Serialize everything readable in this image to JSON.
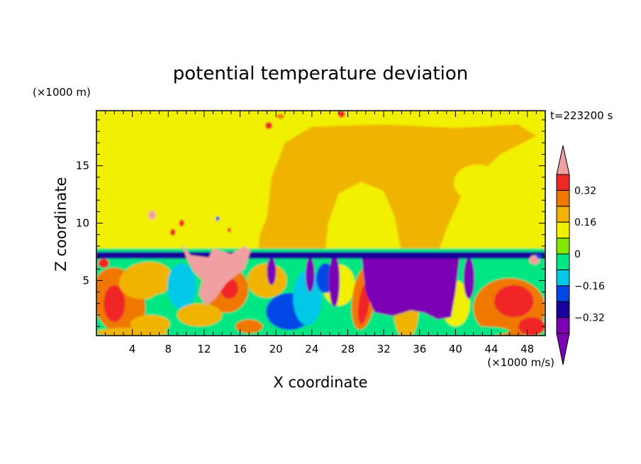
{
  "chart_data": {
    "type": "heatmap",
    "title": "potential temperature deviation",
    "xlabel": "X coordinate",
    "ylabel": "Z coordinate",
    "x_unit": "(×1000 m/s)",
    "y_unit": "(×1000 m)",
    "time_label": "t=223200 s",
    "xlim": [
      0,
      50
    ],
    "ylim": [
      0.2,
      19.8
    ],
    "x_ticks": [
      4,
      8,
      12,
      16,
      20,
      24,
      28,
      32,
      36,
      40,
      44,
      48
    ],
    "y_ticks": [
      5,
      10,
      15
    ],
    "colorbar": {
      "levels": [
        -0.4,
        -0.32,
        -0.24,
        -0.16,
        -0.08,
        0,
        0.08,
        0.16,
        0.24,
        0.32,
        0.4
      ],
      "labels": [
        "0.32",
        "0.16",
        "0",
        "−0.16",
        "−0.32"
      ],
      "label_values": [
        0.32,
        0.16,
        0,
        -0.16,
        -0.32
      ],
      "colors": [
        "#7b00b4",
        "#18009a",
        "#0046e6",
        "#00c8e6",
        "#00e682",
        "#82e600",
        "#f0f000",
        "#f0b400",
        "#f07800",
        "#f02828",
        "#f0a0a0"
      ]
    },
    "regions": [
      {
        "level": 0.04,
        "note": "upper layer",
        "x": [
          0,
          50
        ],
        "z": [
          7.3,
          19.8
        ]
      },
      {
        "level": 0.1,
        "note": "plume",
        "x": [
          18,
          50
        ],
        "z": [
          7.3,
          18.5
        ]
      },
      {
        "level": 0.04,
        "note": "plume interior",
        "x": [
          25,
          36
        ],
        "z": [
          7.3,
          13.5
        ]
      },
      {
        "level": -0.36,
        "note": "inversion band",
        "x": [
          0,
          50
        ],
        "z": [
          6.9,
          7.5
        ]
      },
      {
        "level": -0.4,
        "note": "cold pool",
        "x": [
          30,
          40
        ],
        "z": [
          1.5,
          7.3
        ]
      },
      {
        "level": 0.44,
        "note": "warm anomaly",
        "x": [
          9,
          17
        ],
        "z": [
          2.5,
          8.3
        ]
      },
      {
        "level": 0.2,
        "note": "lower left warm",
        "x": [
          0,
          6
        ],
        "z": [
          0.5,
          6.5
        ]
      },
      {
        "level": 0.28,
        "note": "lower right warm",
        "x": [
          42,
          50
        ],
        "z": [
          1,
          5
        ]
      }
    ]
  }
}
